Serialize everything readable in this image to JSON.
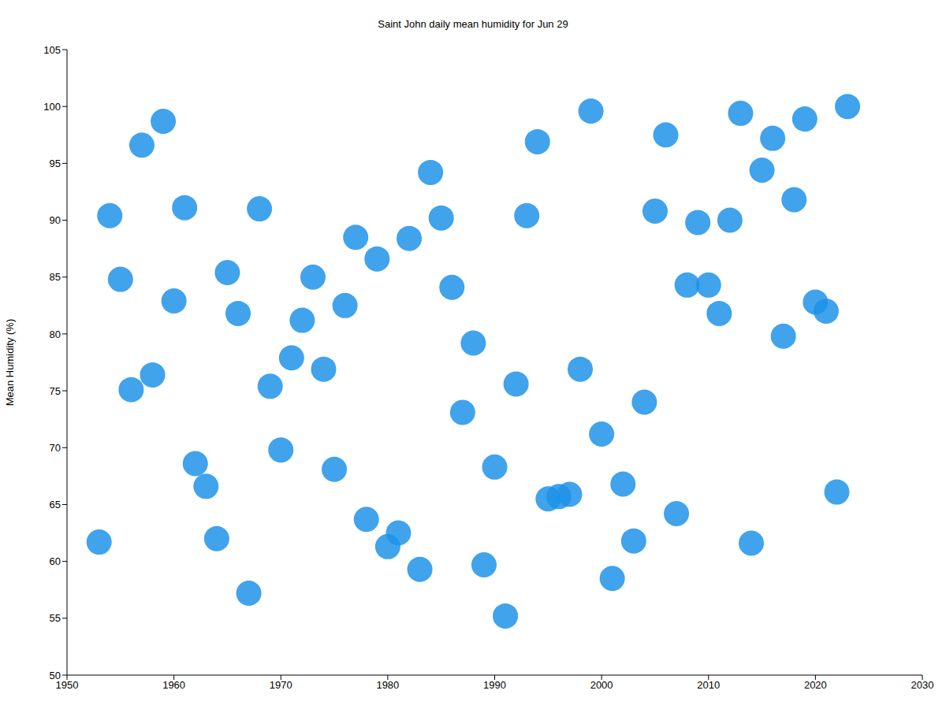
{
  "chart_data": {
    "type": "scatter",
    "title": "Saint John daily mean humidity for Jun 29",
    "y_label": "Mean Humidity (%)",
    "x": [
      1953,
      1954,
      1955,
      1956,
      1957,
      1958,
      1959,
      1960,
      1961,
      1962,
      1963,
      1964,
      1965,
      1966,
      1967,
      1968,
      1969,
      1970,
      1971,
      1972,
      1973,
      1974,
      1975,
      1976,
      1977,
      1978,
      1979,
      1980,
      1981,
      1982,
      1983,
      1984,
      1985,
      1986,
      1987,
      1988,
      1989,
      1990,
      1991,
      1992,
      1993,
      1994,
      1995,
      1996,
      1997,
      1998,
      1999,
      2000,
      2001,
      2002,
      2003,
      2004,
      2005,
      2006,
      2007,
      2008,
      2009,
      2010,
      2011,
      2012,
      2013,
      2014,
      2015,
      2016,
      2017,
      2018,
      2019,
      2020,
      2021,
      2022,
      2023
    ],
    "values": [
      61.7,
      90.4,
      84.8,
      75.1,
      96.6,
      76.4,
      98.7,
      82.9,
      91.1,
      68.6,
      66.6,
      62.0,
      85.4,
      81.8,
      57.2,
      91.0,
      75.4,
      69.8,
      77.9,
      81.2,
      85.0,
      76.9,
      68.1,
      82.5,
      88.5,
      63.7,
      86.6,
      61.3,
      62.5,
      88.4,
      59.3,
      94.2,
      90.2,
      84.1,
      73.1,
      79.2,
      59.7,
      68.3,
      55.2,
      75.6,
      90.4,
      96.9,
      65.5,
      65.7,
      65.9,
      76.9,
      99.6,
      71.2,
      58.5,
      66.8,
      61.8,
      74.0,
      90.8,
      97.5,
      64.2,
      84.3,
      89.8,
      84.3,
      81.8,
      90.0,
      99.4,
      61.6,
      94.4,
      97.2,
      79.8,
      91.8,
      98.9,
      82.8,
      82.0,
      66.1,
      100.0
    ],
    "color": "#1f93e9",
    "marker": "circle",
    "xlim": [
      1950,
      2030
    ],
    "xticks": [
      1950,
      1960,
      1970,
      1980,
      1990,
      2000,
      2010,
      2020,
      2030
    ],
    "ylim": [
      50,
      105
    ],
    "yticks": [
      50,
      55,
      60,
      65,
      70,
      75,
      80,
      85,
      90,
      95,
      100,
      105
    ],
    "grid": true
  }
}
